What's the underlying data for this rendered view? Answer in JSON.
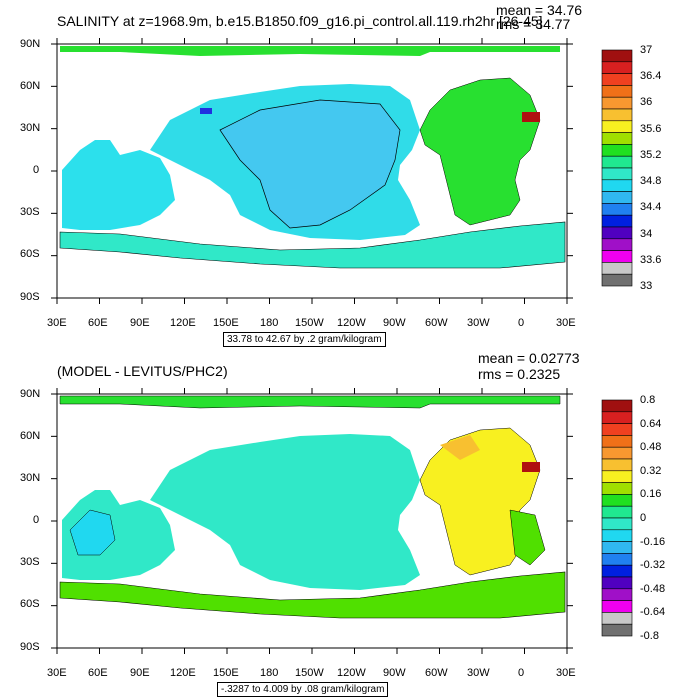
{
  "panels": [
    {
      "title": "SALINITY at z=1968.9m, b.e15.B1850.f09_g16.pi_control.all.119.rh2hr [26-45]",
      "mean_text": "mean = 34.76",
      "rms_text": "rms = 34.77",
      "contour_info": "33.78 to 42.67 by .2 gram/kilogram",
      "colorbar_labels": [
        "37",
        "36.4",
        "36",
        "35.6",
        "35.2",
        "34.8",
        "34.4",
        "34",
        "33.6",
        "33"
      ],
      "colorbar_colors": [
        "#a01010",
        "#d82020",
        "#f04020",
        "#f07018",
        "#f89830",
        "#f8c030",
        "#f8f020",
        "#a0e000",
        "#20e020",
        "#20e890",
        "#30e8c8",
        "#20d8f0",
        "#30b8f0",
        "#2080f0",
        "#0020e0",
        "#5000c0",
        "#a010c8",
        "#f000f0",
        "#c8c8c8",
        "#707070"
      ]
    },
    {
      "title": "(MODEL - LEVITUS/PHC2)",
      "mean_text": "mean = 0.02773",
      "rms_text": "rms = 0.2325",
      "contour_info": "-.3287 to 4.009 by .08 gram/kilogram",
      "colorbar_labels": [
        "0.8",
        "0.64",
        "0.48",
        "0.32",
        "0.16",
        "0",
        "-0.16",
        "-0.32",
        "-0.48",
        "-0.64",
        "-0.8"
      ],
      "colorbar_colors": [
        "#a01010",
        "#d82020",
        "#f04020",
        "#f07018",
        "#f89830",
        "#f8c030",
        "#f8f020",
        "#a0e000",
        "#20e020",
        "#20e890",
        "#30e8c8",
        "#20d8f0",
        "#30b8f0",
        "#2080f0",
        "#0020e0",
        "#5000c0",
        "#a010c8",
        "#f000f0",
        "#c8c8c8",
        "#707070"
      ]
    }
  ],
  "lat_labels": [
    "90N",
    "60N",
    "30N",
    "0",
    "30S",
    "60S",
    "90S"
  ],
  "lon_labels": [
    "30E",
    "60E",
    "90E",
    "120E",
    "150E",
    "180",
    "150W",
    "120W",
    "90W",
    "60W",
    "30W",
    "0",
    "30E"
  ],
  "colors": {
    "pacific_top": "#30dce8",
    "pacific_top_core": "#44c8f0",
    "indian_top": "#2ce0ec",
    "atlantic_top": "#28e030",
    "southern_top": "#30e8c8",
    "arctic_top": "#28e030",
    "med_top": "#b01010",
    "pacific_bot": "#30e8c8",
    "atlantic_bot": "#f8f020",
    "southern_bot": "#50e000",
    "arctic_bot": "#28e030",
    "indian_bot": "#30e8c8"
  }
}
